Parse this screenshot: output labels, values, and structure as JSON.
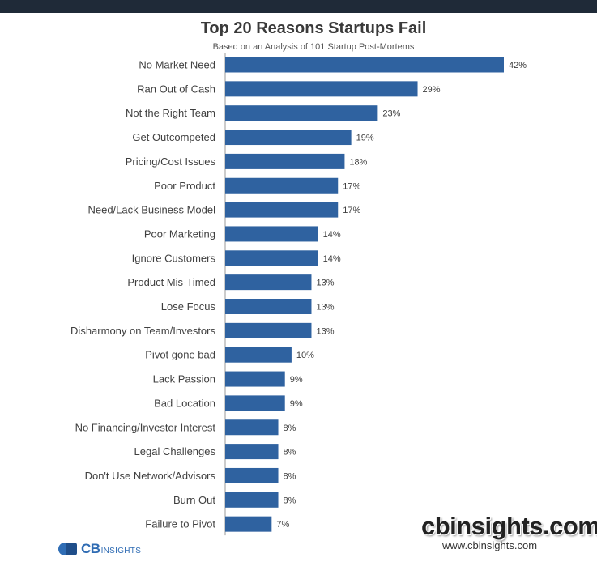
{
  "chart_data": {
    "type": "bar",
    "orientation": "horizontal",
    "title": "Top 20 Reasons Startups Fail",
    "subtitle": "Based on an Analysis of 101 Startup Post-Mortems",
    "categories": [
      "No Market Need",
      "Ran Out of Cash",
      "Not the Right Team",
      "Get Outcompeted",
      "Pricing/Cost Issues",
      "Poor Product",
      "Need/Lack Business Model",
      "Poor Marketing",
      "Ignore Customers",
      "Product Mis-Timed",
      "Lose Focus",
      "Disharmony on Team/Investors",
      "Pivot gone bad",
      "Lack Passion",
      "Bad Location",
      "No Financing/Investor Interest",
      "Legal Challenges",
      "Don't Use Network/Advisors",
      "Burn Out",
      "Failure to Pivot"
    ],
    "values": [
      42,
      29,
      23,
      19,
      18,
      17,
      17,
      14,
      14,
      13,
      13,
      13,
      10,
      9,
      9,
      8,
      8,
      8,
      8,
      7
    ],
    "value_labels": [
      "42%",
      "29%",
      "23%",
      "19%",
      "18%",
      "17%",
      "17%",
      "14%",
      "14%",
      "13%",
      "13%",
      "13%",
      "10%",
      "9%",
      "9%",
      "8%",
      "8%",
      "8%",
      "8%",
      "7%"
    ],
    "xlabel": "",
    "ylabel": "",
    "xlim": [
      0,
      42
    ],
    "grid": false,
    "legend": "none",
    "bar_color": "#2f62a0"
  },
  "branding": {
    "logo_cb": "CB",
    "logo_insights": "INSIGHTS",
    "watermark": "cbinsights.com",
    "watermark_url": "www.cbinsights.com"
  }
}
